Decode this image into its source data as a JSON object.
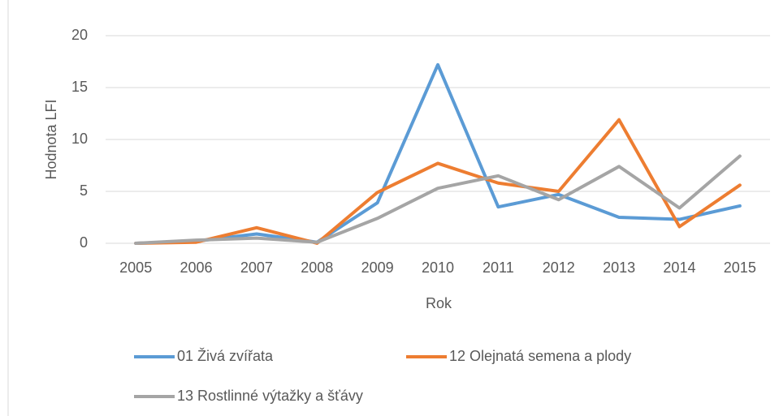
{
  "chart_data": {
    "type": "line",
    "x_label": "Rok",
    "y_label": "Hodnota LFI",
    "categories": [
      "2005",
      "2006",
      "2007",
      "2008",
      "2009",
      "2010",
      "2011",
      "2012",
      "2013",
      "2014",
      "2015"
    ],
    "series": [
      {
        "name": "01 Živá zvířata",
        "color": "#5b9bd5",
        "values": [
          0,
          0.2,
          0.9,
          0.1,
          3.9,
          17.2,
          3.5,
          4.7,
          2.5,
          2.3,
          3.6
        ]
      },
      {
        "name": "12 Olejnatá semena a plody",
        "color": "#ed7d31",
        "values": [
          0,
          0.1,
          1.5,
          0,
          4.9,
          7.7,
          5.8,
          5.0,
          11.9,
          1.6,
          5.6
        ]
      },
      {
        "name": "13 Rostlinné výtažky a šťávy",
        "color": "#a5a5a5",
        "values": [
          0,
          0.3,
          0.5,
          0.1,
          2.4,
          5.3,
          6.5,
          4.2,
          7.4,
          3.4,
          8.4
        ]
      }
    ],
    "ylim": [
      0,
      20
    ],
    "yticks": [
      0,
      5,
      10,
      15,
      20
    ],
    "grid": true,
    "legend": "bottom"
  }
}
